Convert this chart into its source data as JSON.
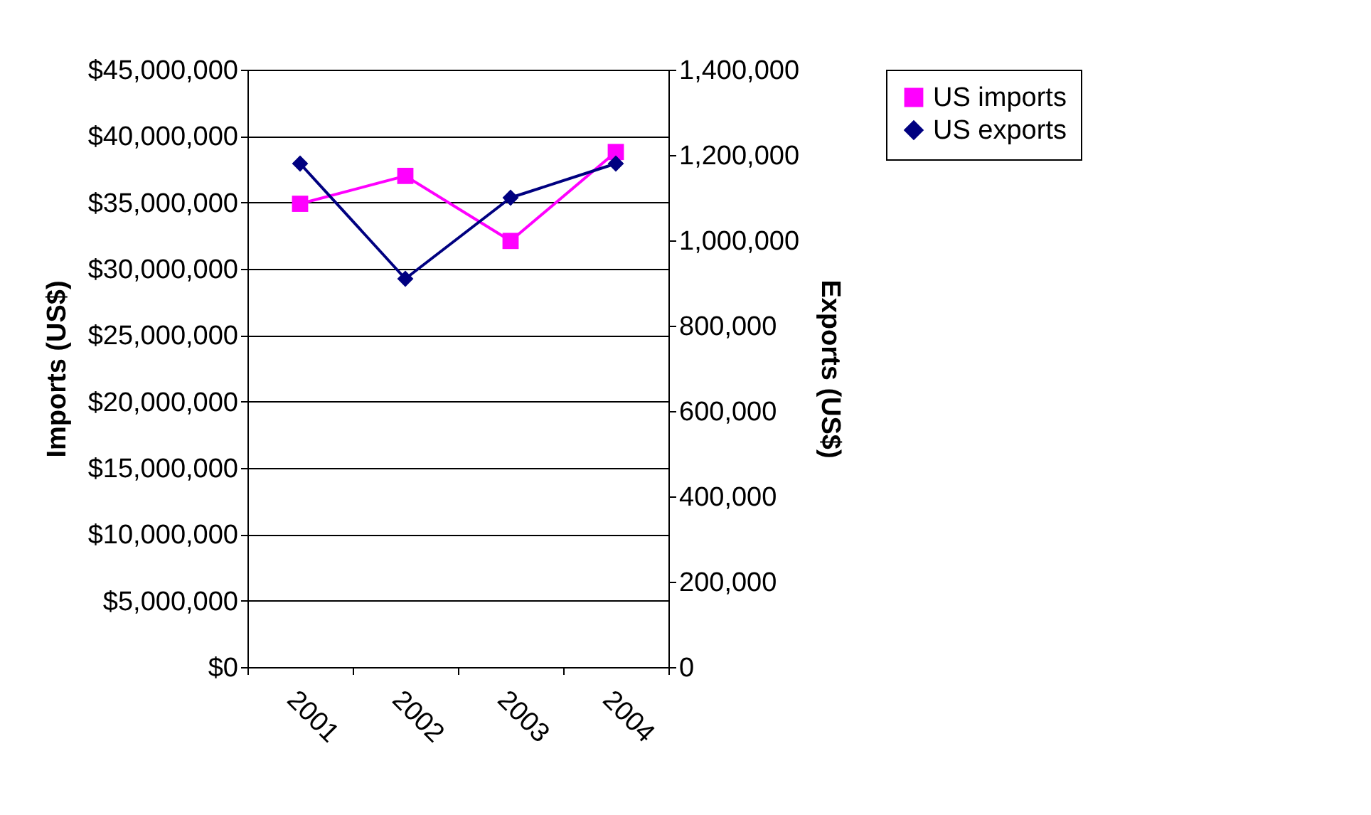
{
  "chart_data": {
    "type": "line",
    "ylabel": "Imports (US$)",
    "y2label": "Exports (US$)",
    "categories": [
      "2001",
      "2002",
      "2003",
      "2004"
    ],
    "series": [
      {
        "name": "US imports",
        "color": "#ff00ff",
        "marker": "square",
        "values": [
          34900000,
          37000000,
          32100000,
          38800000
        ]
      },
      {
        "name": "US exports",
        "color": "#000080",
        "marker": "diamond",
        "axis": "y2",
        "values": [
          1180000,
          910000,
          1100000,
          1180000
        ]
      }
    ],
    "ylim": [
      0,
      45000000
    ],
    "yticks": [
      {
        "value": 0,
        "label": "$0"
      },
      {
        "value": 5000000,
        "label": "$5,000,000"
      },
      {
        "value": 10000000,
        "label": "$10,000,000"
      },
      {
        "value": 15000000,
        "label": "$15,000,000"
      },
      {
        "value": 20000000,
        "label": "$20,000,000"
      },
      {
        "value": 25000000,
        "label": "$25,000,000"
      },
      {
        "value": 30000000,
        "label": "$30,000,000"
      },
      {
        "value": 35000000,
        "label": "$35,000,000"
      },
      {
        "value": 40000000,
        "label": "$40,000,000"
      },
      {
        "value": 45000000,
        "label": "$45,000,000"
      }
    ],
    "y2lim": [
      0,
      1400000
    ],
    "y2ticks": [
      {
        "value": 0,
        "label": "0"
      },
      {
        "value": 200000,
        "label": "200,000"
      },
      {
        "value": 400000,
        "label": "400,000"
      },
      {
        "value": 600000,
        "label": "600,000"
      },
      {
        "value": 800000,
        "label": "800,000"
      },
      {
        "value": 1000000,
        "label": "1,000,000"
      },
      {
        "value": 1200000,
        "label": "1,200,000"
      },
      {
        "value": 1400000,
        "label": "1,400,000"
      }
    ],
    "grid": "y",
    "legend": "right",
    "line_style": "solid"
  }
}
